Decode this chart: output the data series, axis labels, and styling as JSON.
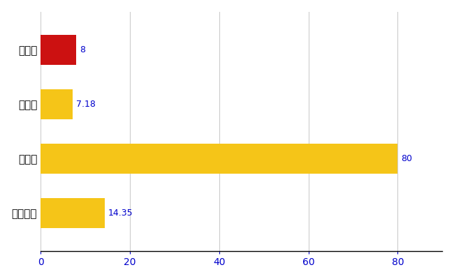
{
  "categories": [
    "東御市",
    "県平均",
    "県最大",
    "全国平均"
  ],
  "values": [
    8,
    7.18,
    80,
    14.35
  ],
  "bar_colors": [
    "#cc1111",
    "#f5c518",
    "#f5c518",
    "#f5c518"
  ],
  "value_labels": [
    "8",
    "7.18",
    "80",
    "14.35"
  ],
  "xlim": [
    0,
    90
  ],
  "xticks": [
    0,
    20,
    40,
    60,
    80
  ],
  "grid_color": "#cccccc",
  "background_color": "#ffffff",
  "label_color": "#0000cc",
  "bar_height": 0.55,
  "figsize": [
    6.5,
    4.0
  ],
  "dpi": 100
}
